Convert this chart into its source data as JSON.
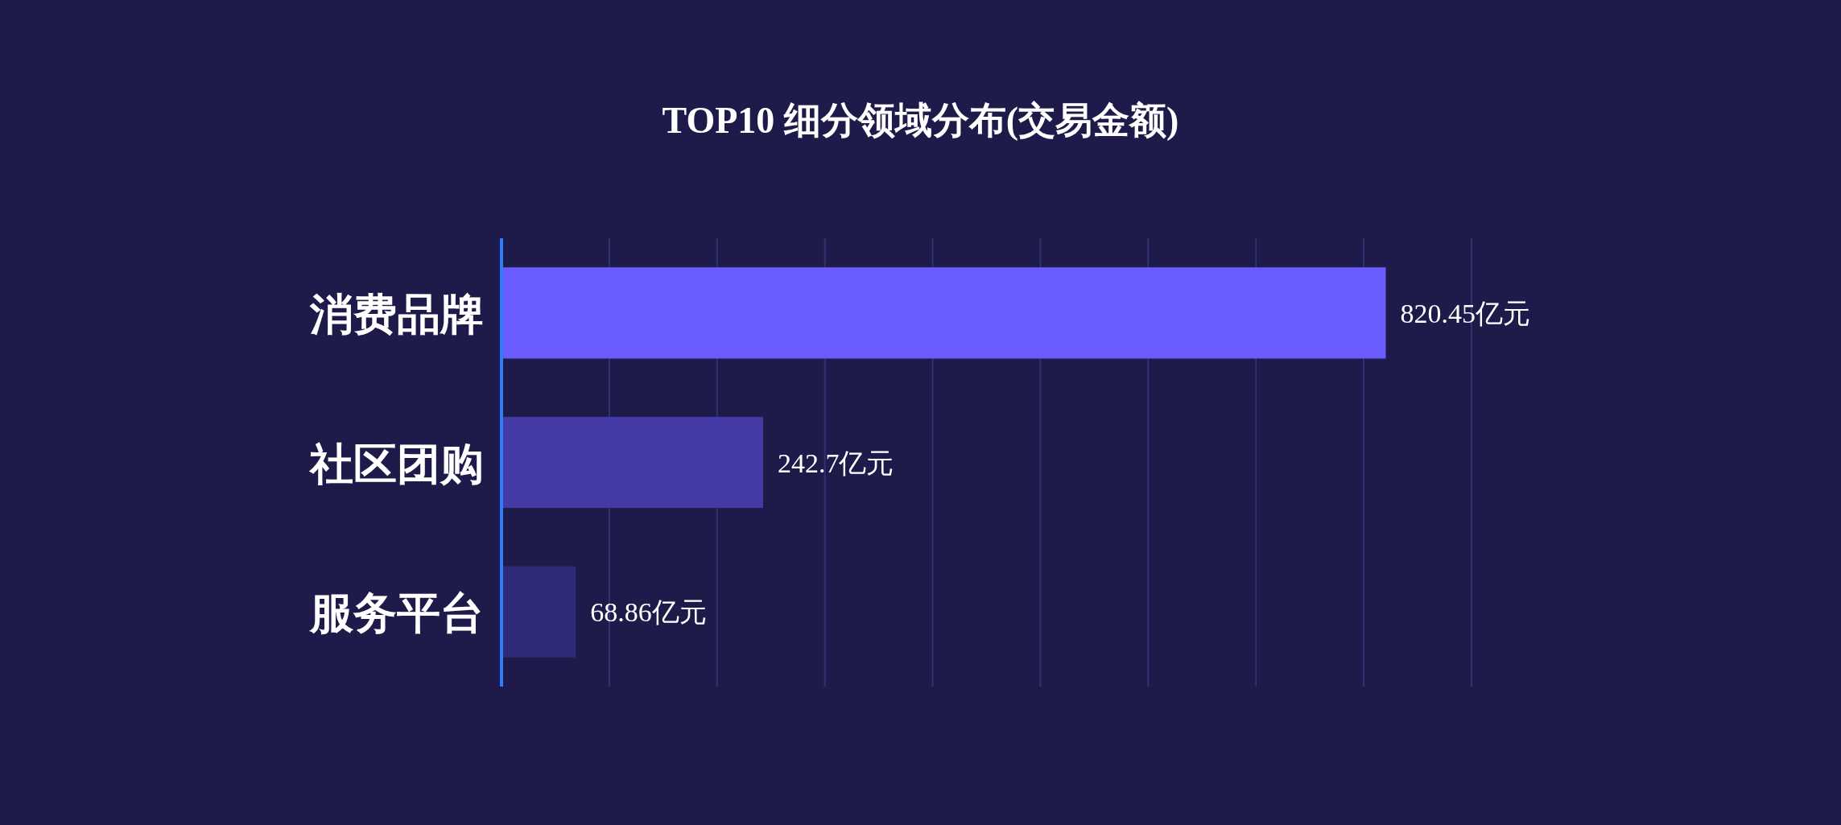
{
  "chart_data": {
    "type": "bar",
    "orientation": "horizontal",
    "title": "TOP10 细分领域分布(交易金额)",
    "categories": [
      "消费品牌",
      "社区团购",
      "服务平台"
    ],
    "values": [
      820.45,
      242.7,
      68.86
    ],
    "colors": [
      "#6a5cff",
      "#433aa6",
      "#2f2a78"
    ],
    "value_labels": [
      "820.45亿元",
      "242.7亿元",
      "68.86亿元"
    ],
    "xlim": [
      0,
      900
    ],
    "xticks": [
      {
        "value": 100,
        "label": null
      },
      {
        "value": 200,
        "label": null
      },
      {
        "value": 300,
        "label": null
      },
      {
        "value": 400,
        "label": null
      },
      {
        "value": 500,
        "label": null
      },
      {
        "value": 600,
        "label": null
      },
      {
        "value": 700,
        "label": null
      },
      {
        "value": 800,
        "label": null
      },
      {
        "value": 900,
        "label": null
      }
    ],
    "grid": "x"
  }
}
